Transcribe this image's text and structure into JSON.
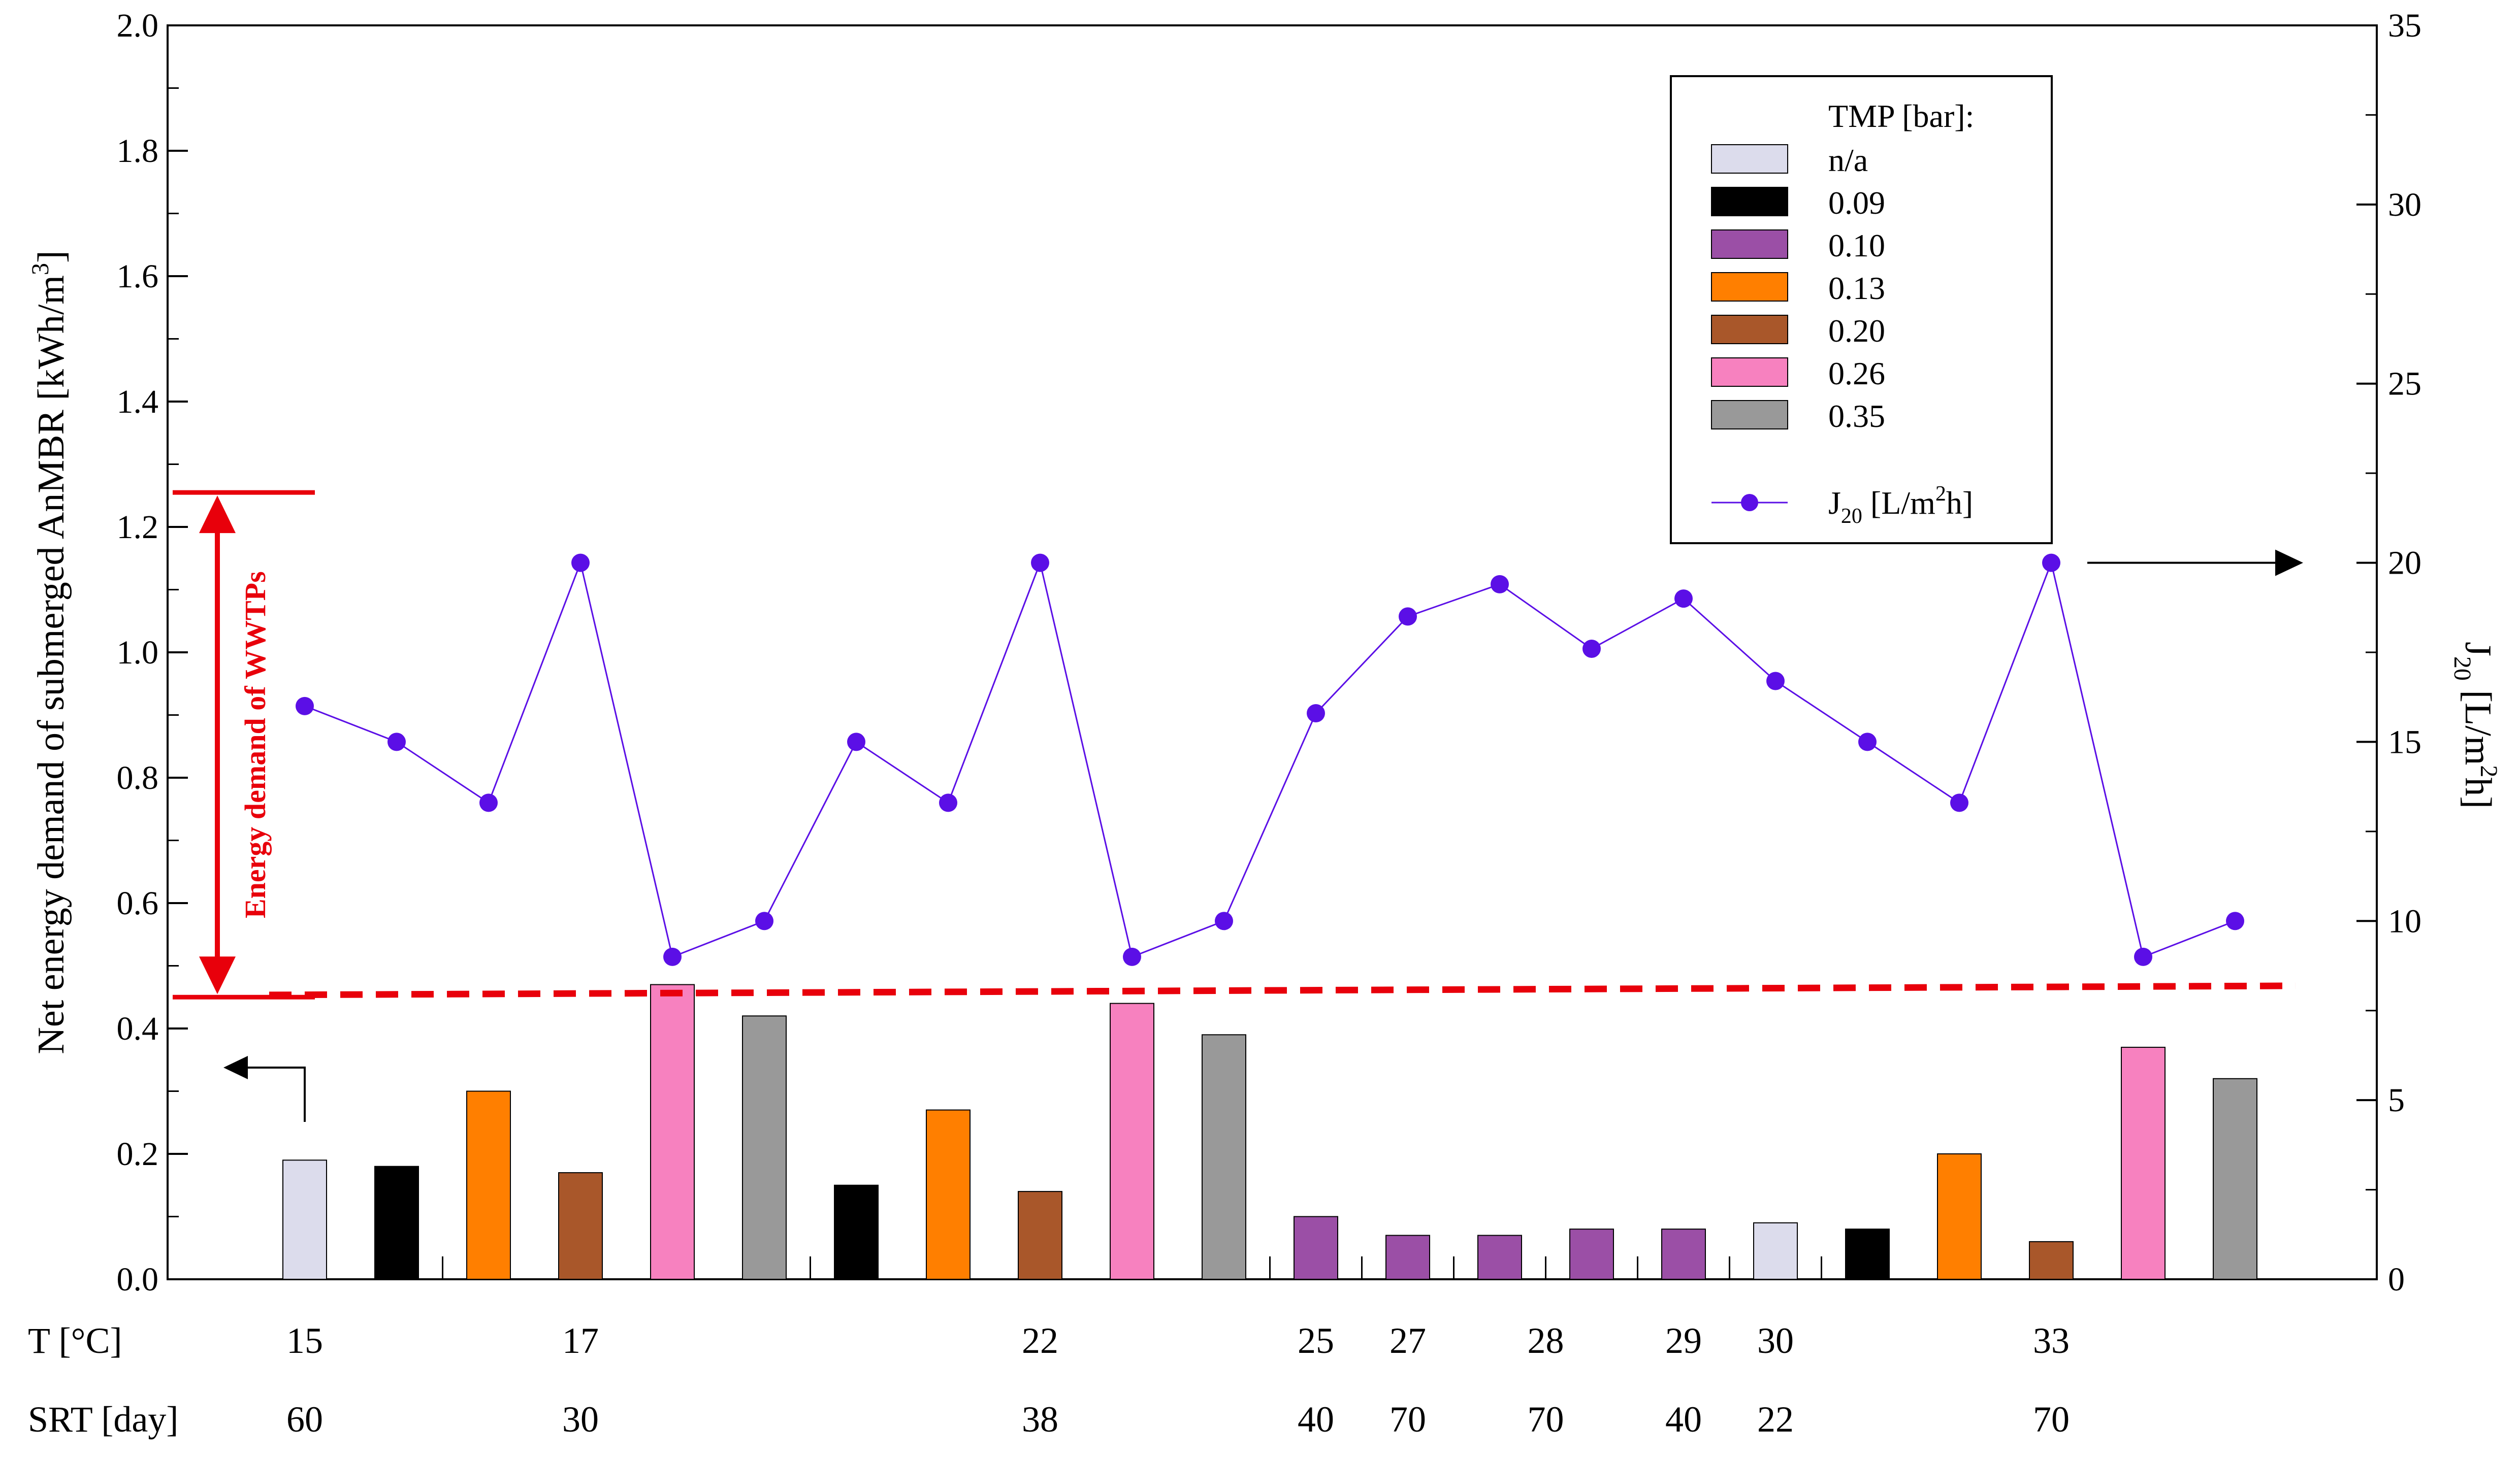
{
  "chart_data": {
    "type": "bar",
    "title": "",
    "ylabel_left": "Net energy demand of submerged AnMBR [kWh/m",
    "ylabel_left_sup": "3",
    "ylabel_left_end": "]",
    "ylabel_right": "J",
    "ylabel_right_sub": "20",
    "ylabel_right_mid": " [L/m",
    "ylabel_right_sup": "2",
    "ylabel_right_end": "h]",
    "ylim_left": [
      0,
      2.0
    ],
    "ylim_right": [
      0,
      35
    ],
    "yticks_left": [
      "0.0",
      "0.2",
      "0.4",
      "0.6",
      "0.8",
      "1.0",
      "1.2",
      "1.4",
      "1.6",
      "1.8",
      "2.0"
    ],
    "yticks_right": [
      "0",
      "5",
      "10",
      "15",
      "20",
      "25",
      "30",
      "35"
    ],
    "grid": false,
    "legend_position": "top-right",
    "legend": {
      "title": "TMP [bar]:",
      "entries": [
        {
          "label": "n/a",
          "color": "#dcdcec"
        },
        {
          "label": "0.09",
          "color": "#000000"
        },
        {
          "label": "0.10",
          "color": "#9b4fa6"
        },
        {
          "label": "0.13",
          "color": "#ff7f00"
        },
        {
          "label": "0.20",
          "color": "#a9572a"
        },
        {
          "label": "0.26",
          "color": "#f781bf"
        },
        {
          "label": "0.35",
          "color": "#999999"
        }
      ],
      "line_entry": {
        "label": "J",
        "sub": "20",
        "mid": " [L/m",
        "sup": "2",
        "end": "h]",
        "color": "#5b0fe6"
      }
    },
    "bars": {
      "values": [
        0.19,
        0.18,
        0.3,
        0.17,
        0.47,
        0.42,
        0.15,
        0.27,
        0.14,
        0.44,
        0.39,
        0.1,
        0.07,
        0.07,
        0.08,
        0.08,
        0.09,
        0.08,
        0.2,
        0.06,
        0.37,
        0.32
      ],
      "tmp_class": [
        0,
        1,
        3,
        4,
        5,
        6,
        1,
        3,
        4,
        5,
        6,
        2,
        2,
        2,
        2,
        2,
        0,
        1,
        3,
        4,
        5,
        6
      ]
    },
    "series": [
      {
        "name": "J20 [L/m2h]",
        "axis": "right",
        "color": "#5b0fe6",
        "values": [
          16,
          15,
          13.3,
          20,
          9,
          10,
          15,
          13.3,
          20,
          9,
          10,
          15.8,
          18.5,
          19.4,
          17.6,
          19,
          16.7,
          15,
          13.3,
          20,
          9,
          10
        ]
      }
    ],
    "reference_line": {
      "name": "Energy demand of WWTPs",
      "value": 0.46,
      "color": "#e8000b"
    },
    "annotation": {
      "text": "Energy demand of WWTPs",
      "range": [
        0.45,
        1.255
      ]
    },
    "group_dividers_after": [
      1,
      5,
      10,
      11,
      12,
      13,
      14,
      15,
      16
    ],
    "rows": [
      {
        "label": "T [°C]",
        "entries": [
          {
            "text": "15",
            "at": 0
          },
          {
            "text": "17",
            "at": 3
          },
          {
            "text": "22",
            "at": 8
          },
          {
            "text": "25",
            "at": 11
          },
          {
            "text": "27",
            "at": 12
          },
          {
            "text": "28",
            "at": 13.5
          },
          {
            "text": "29",
            "at": 15
          },
          {
            "text": "30",
            "at": 16
          },
          {
            "text": "33",
            "at": 19
          }
        ]
      },
      {
        "label": "SRT [day]",
        "entries": [
          {
            "text": "60",
            "at": 0
          },
          {
            "text": "30",
            "at": 3
          },
          {
            "text": "38",
            "at": 8
          },
          {
            "text": "40",
            "at": 11
          },
          {
            "text": "70",
            "at": 12
          },
          {
            "text": "70",
            "at": 13.5
          },
          {
            "text": "40",
            "at": 15
          },
          {
            "text": "22",
            "at": 16
          },
          {
            "text": "70",
            "at": 19
          }
        ]
      }
    ]
  }
}
